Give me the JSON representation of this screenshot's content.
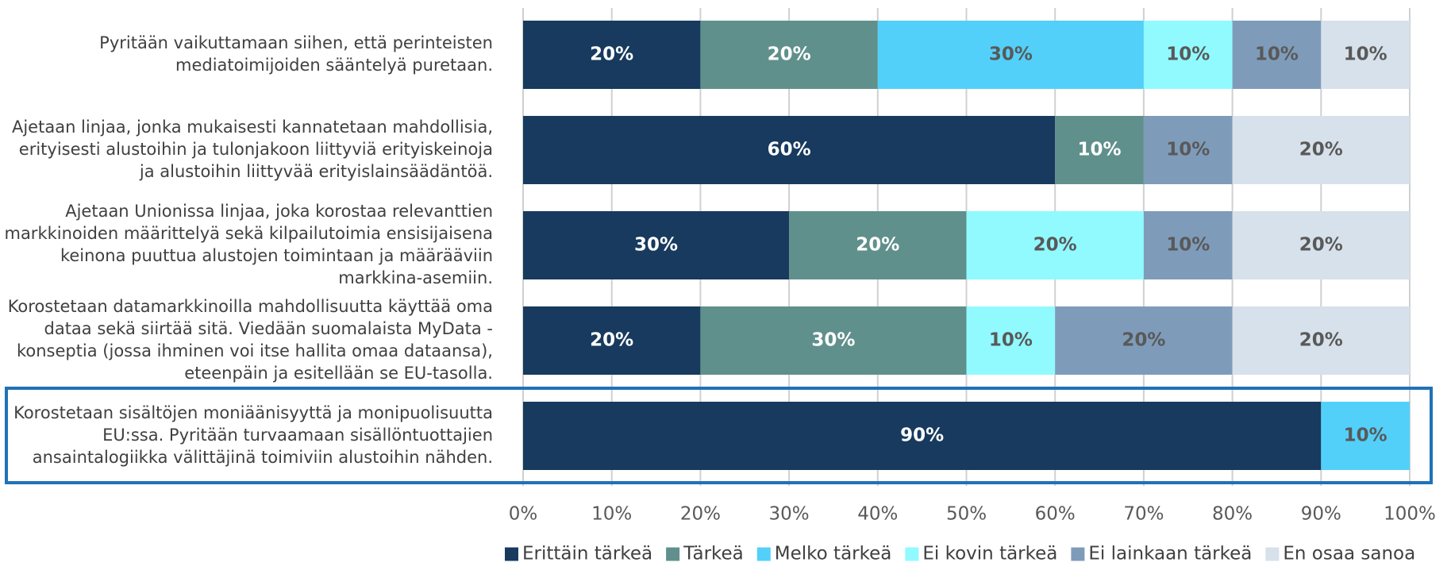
{
  "chart_data": {
    "type": "stacked_bar_horizontal",
    "categories": [
      [
        "Pyritään vaikuttamaan siihen, että perinteisten",
        "mediatoimijoiden sääntelyä puretaan."
      ],
      [
        "Ajetaan linjaa, jonka mukaisesti kannatetaan mahdollisia,",
        "erityisesti alustoihin ja tulonjakoon liittyviä erityiskeinoja",
        "ja alustoihin liittyvää erityislainsäädäntöä."
      ],
      [
        "Ajetaan Unionissa linjaa, joka korostaa relevanttien",
        "markkinoiden määrittelyä sekä kilpailutoimia ensisijaisena",
        "keinona puuttua alustojen toimintaan ja määrääviin",
        "markkina-asemiin."
      ],
      [
        "Korostetaan datamarkkinoilla mahdollisuutta käyttää oma",
        "dataa sekä siirtää sitä. Viedään suomalaista MyData -",
        "konseptia (jossa ihminen voi itse hallita omaa dataansa),",
        "eteenpäin ja esitellään se EU-tasolla."
      ],
      [
        "Korostetaan sisältöjen moniäänisyyttä ja monipuolisuutta",
        "EU:ssa. Pyritään turvaamaan sisällöntuottajien",
        "ansaintalogiikka välittäjinä toimiviin alustoihin nähden."
      ]
    ],
    "series": [
      {
        "name": "Erittäin tärkeä",
        "color": "#173a5e",
        "label_color": "#ffffff",
        "values": [
          20,
          60,
          30,
          20,
          90
        ],
        "value_labels": [
          "20%",
          "60%",
          "30%",
          "20%",
          "90%"
        ]
      },
      {
        "name": "Tärkeä",
        "color": "#60908c",
        "label_color": "#ffffff",
        "values": [
          20,
          10,
          20,
          30,
          null
        ],
        "value_labels": [
          "20%",
          "10%",
          "20%",
          "30%",
          null
        ]
      },
      {
        "name": "Melko tärkeä",
        "color": "#52d0fa",
        "label_color": "#595959",
        "values": [
          30,
          null,
          null,
          null,
          10
        ],
        "value_labels": [
          "30%",
          null,
          null,
          null,
          "10%"
        ]
      },
      {
        "name": "Ei kovin tärkeä",
        "color": "#90faff",
        "label_color": "#595959",
        "values": [
          10,
          null,
          20,
          10,
          null
        ],
        "value_labels": [
          "10%",
          null,
          "20%",
          "10%",
          null
        ]
      },
      {
        "name": "Ei lainkaan tärkeä",
        "color": "#7e9cba",
        "label_color": "#595959",
        "values": [
          10,
          10,
          10,
          20,
          null
        ],
        "value_labels": [
          "10%",
          "10%",
          "10%",
          "20%",
          null
        ]
      },
      {
        "name": "En osaa sanoa",
        "color": "#d7e1eb",
        "label_color": "#595959",
        "values": [
          10,
          20,
          20,
          20,
          null
        ],
        "value_labels": [
          "10%",
          "20%",
          "20%",
          "20%",
          null
        ]
      }
    ],
    "xlim": [
      0,
      100
    ],
    "xticks": [
      {
        "value": 0,
        "label": "0%"
      },
      {
        "value": 10,
        "label": "10%"
      },
      {
        "value": 20,
        "label": "20%"
      },
      {
        "value": 30,
        "label": "30%"
      },
      {
        "value": 40,
        "label": "40%"
      },
      {
        "value": 50,
        "label": "50%"
      },
      {
        "value": 60,
        "label": "60%"
      },
      {
        "value": 70,
        "label": "70%"
      },
      {
        "value": 80,
        "label": "80%"
      },
      {
        "value": 90,
        "label": "90%"
      },
      {
        "value": 100,
        "label": "100%"
      }
    ],
    "grid": true,
    "legend": "bottom"
  }
}
